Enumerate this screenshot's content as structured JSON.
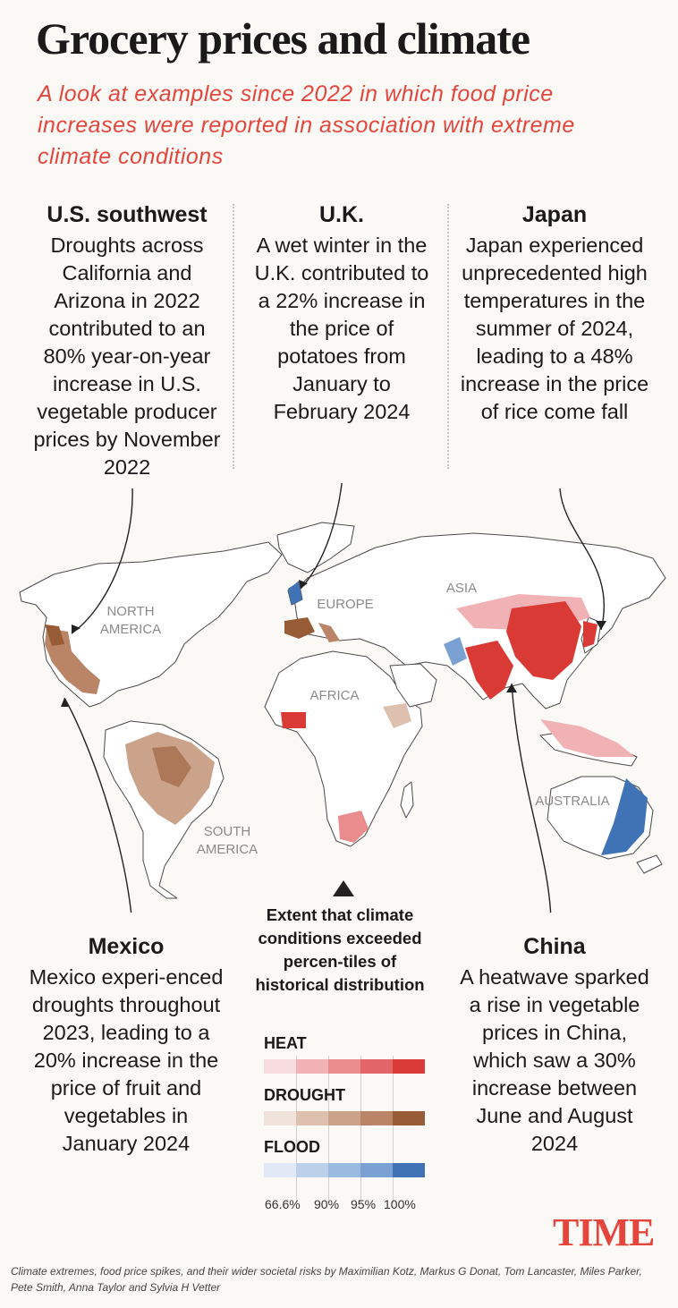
{
  "title": "Grocery prices and climate",
  "subtitle": "A look at examples since 2022 in which food price increases were reported in association with extreme climate conditions",
  "regions_top": [
    {
      "heading": "U.S. southwest",
      "text": "Droughts across California and Arizona in 2022 contributed to an 80% year-on-year increase in U.S. vegetable producer prices by November 2022"
    },
    {
      "heading": "U.K.",
      "text": "A wet winter in the U.K. contributed to a 22% increase in the price of potatoes from January to February 2024"
    },
    {
      "heading": "Japan",
      "text": "Japan experienced unprecedented high temperatures in the summer of 2024, leading to a 48% increase in the price of rice come fall"
    }
  ],
  "regions_bottom": [
    {
      "heading": "Mexico",
      "text": "Mexico experi-enced droughts throughout 2023, leading to a 20% increase in the price of fruit and vegetables in January 2024"
    },
    {
      "heading": "China",
      "text": "A heatwave sparked a rise in vegetable prices in China, which saw a 30% increase between June and August 2024"
    }
  ],
  "map_labels": {
    "north_america": "NORTH AMERICA",
    "south_america": "SOUTH AMERICA",
    "europe": "EUROPE",
    "africa": "AFRICA",
    "asia": "ASIA",
    "australia": "AUSTRALIA"
  },
  "legend": {
    "title": "Extent that climate conditions exceeded percen-tiles of historical distribution",
    "heat_label": "HEAT",
    "drought_label": "DROUGHT",
    "flood_label": "FLOOD",
    "ticks": [
      "66.6%",
      "90%",
      "95%",
      "100%"
    ],
    "heat_colors": [
      "#f6dcdf",
      "#f1b2b5",
      "#ea8c8d",
      "#e26567",
      "#d93a36"
    ],
    "drought_colors": [
      "#efe3dc",
      "#ddc0ad",
      "#cba38a",
      "#b98566",
      "#975c36"
    ],
    "flood_colors": [
      "#dfe8f4",
      "#bcd0ea",
      "#9cbadf",
      "#7ba1d2",
      "#3f73b5"
    ]
  },
  "logo": "TIME",
  "source": "Climate extremes, food price spikes, and their wider societal risks by Maximilian Kotz, Markus G Donat, Tom Lancaster, Miles Parker, Pete Smith, Anna Taylor and Sylvia H Vetter"
}
